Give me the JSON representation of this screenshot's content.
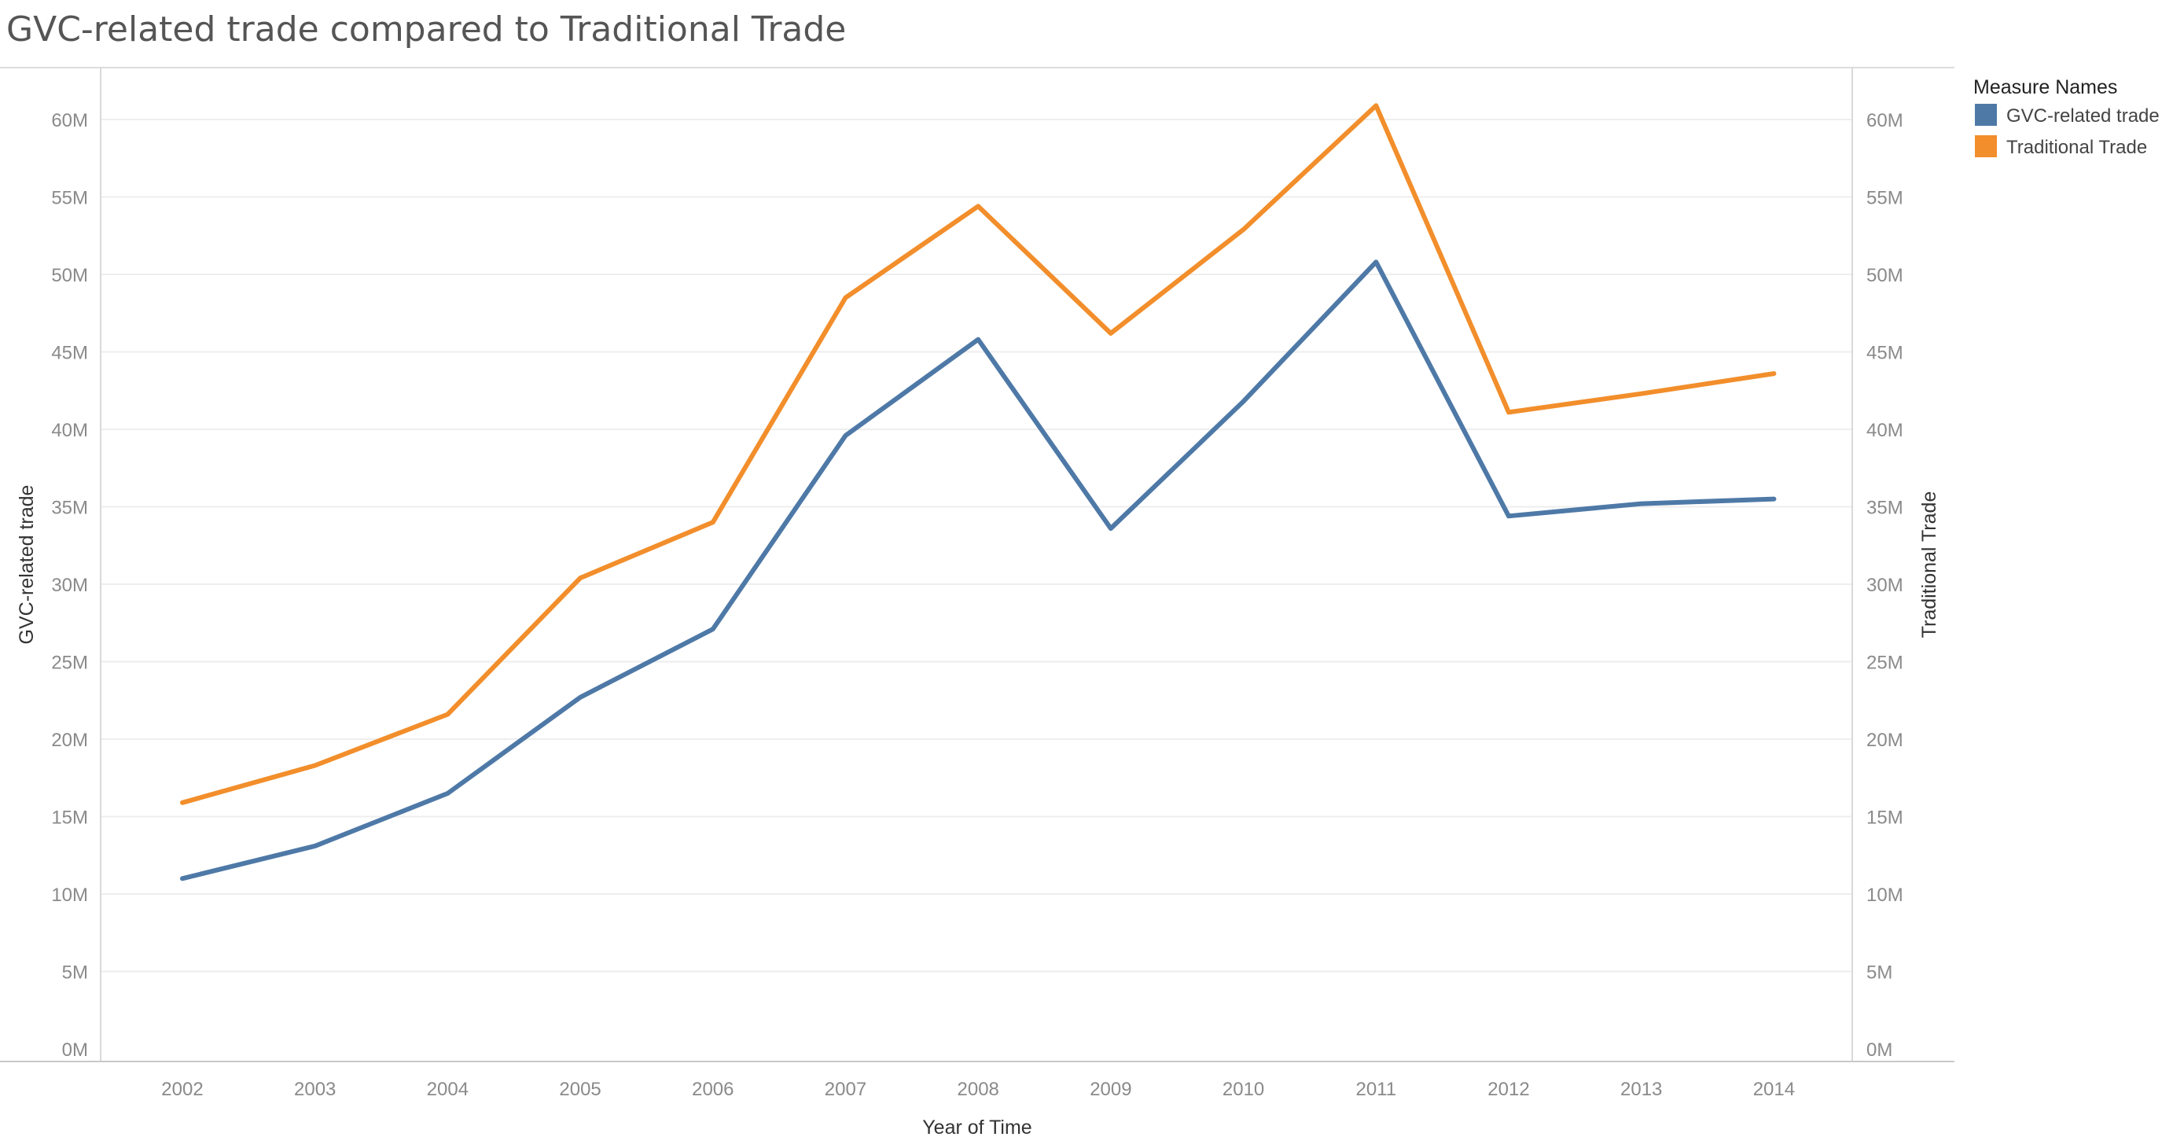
{
  "chart_data": {
    "type": "line",
    "title": "GVC-related trade compared to Traditional Trade",
    "xlabel": "Year of Time",
    "ylabel": "GVC-related trade",
    "ylabel_right": "Traditional Trade",
    "categories": [
      "2002",
      "2003",
      "2004",
      "2005",
      "2006",
      "2007",
      "2008",
      "2009",
      "2010",
      "2011",
      "2012",
      "2013",
      "2014"
    ],
    "series": [
      {
        "name": "GVC-related trade",
        "color": "#4e79a7",
        "axis": "left",
        "values": [
          11.0,
          13.1,
          16.5,
          22.7,
          27.1,
          39.6,
          45.8,
          33.6,
          41.8,
          50.8,
          34.4,
          35.2,
          35.5
        ]
      },
      {
        "name": "Traditional Trade",
        "color": "#f28e2b",
        "axis": "right",
        "values": [
          15.9,
          18.3,
          21.6,
          30.4,
          34.0,
          48.5,
          54.4,
          46.2,
          52.9,
          60.9,
          41.1,
          42.3,
          43.6
        ]
      }
    ],
    "value_unit": "millions",
    "ylim": [
      0,
      64
    ],
    "yticks": [
      0,
      5,
      10,
      15,
      20,
      25,
      30,
      35,
      40,
      45,
      50,
      55,
      60
    ],
    "ytick_labels": [
      "0M",
      "5M",
      "10M",
      "15M",
      "20M",
      "25M",
      "30M",
      "35M",
      "40M",
      "45M",
      "50M",
      "55M",
      "60M"
    ],
    "grid": true,
    "legend": {
      "title": "Measure Names",
      "placement": "top-right"
    }
  }
}
